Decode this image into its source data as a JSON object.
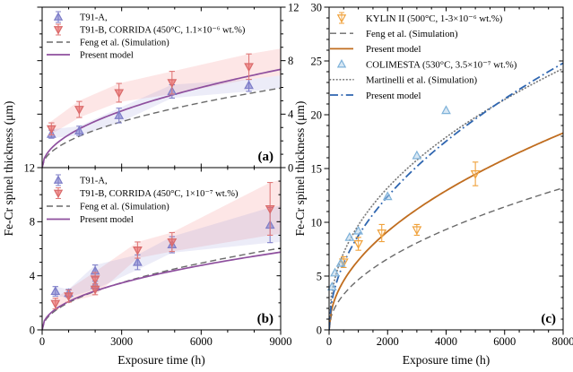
{
  "figure": {
    "background": "#ffffff",
    "shared_ylabel": "Fe-Cr spinel thickness (μm)",
    "panel_c_ylabel": "Fe-Cr spinel thickness (μm)",
    "xlabel_left": "Exposure time (h)",
    "xlabel_right": "Exposure time (h)",
    "panel_label_color": "#1c1ccd",
    "frame_color": "#000000"
  },
  "chart_data": [
    {
      "id": "a",
      "type": "scatter",
      "panel_label": "(a)",
      "xlim": [
        0,
        9000
      ],
      "ylim": [
        0,
        12
      ],
      "xticks": {
        "major": [
          0,
          3000,
          6000,
          9000
        ],
        "minor_step": 1000,
        "show_labels": false
      },
      "yticks": {
        "major": [
          0,
          4,
          8,
          12
        ],
        "minor_step": 1,
        "label_side": "right"
      },
      "bands": [
        {
          "name": "t91b-spread",
          "color": "rgba(244,140,140,0.22)",
          "x": [
            300,
            1400,
            2900,
            4900,
            7800,
            9000
          ],
          "upper": [
            3.4,
            5.0,
            6.3,
            7.2,
            8.5,
            8.9
          ],
          "lower": [
            2.45,
            3.75,
            4.9,
            5.5,
            6.6,
            6.9
          ]
        },
        {
          "name": "t91a-spread",
          "color": "rgba(148,148,216,0.18)",
          "x": [
            300,
            1400,
            2900,
            4900,
            7800,
            9000
          ],
          "upper": [
            2.85,
            3.1,
            4.45,
            6.2,
            6.6,
            6.9
          ],
          "lower": [
            2.2,
            2.4,
            3.35,
            5.2,
            5.7,
            5.95
          ]
        }
      ],
      "series": [
        {
          "name": "T91-A,",
          "kind": "scatter",
          "marker": "triangle-up",
          "fill": "rgba(125,125,204,0.6)",
          "edge": "#7d7dc8",
          "err_color": "#8181c9",
          "x": [
            350,
            1400,
            2900,
            4900,
            7800
          ],
          "y": [
            2.5,
            2.75,
            3.9,
            5.7,
            6.15
          ],
          "yerr": [
            0.3,
            0.35,
            0.55,
            0.5,
            0.45
          ]
        },
        {
          "name": "T91-B, CORRIDA (450°C, 1.1×10⁻⁶ wt.%)",
          "kind": "scatter",
          "marker": "triangle-down",
          "fill": "rgba(232,106,106,0.65)",
          "edge": "#d96a6a",
          "err_color": "#e07a7a",
          "x": [
            350,
            1400,
            2900,
            4900,
            7800
          ],
          "y": [
            2.9,
            4.35,
            5.6,
            6.35,
            7.55
          ],
          "yerr": [
            0.45,
            0.6,
            0.7,
            0.85,
            0.95
          ]
        },
        {
          "name": "Feng et al. (Simulation)",
          "kind": "curve",
          "style": "dashed",
          "color": "#6a6a6a",
          "width": 1.4,
          "power": {
            "coef": 5.95,
            "exp": 0.5,
            "tref": 9000
          }
        },
        {
          "name": "Present model",
          "kind": "curve",
          "style": "solid",
          "color": "#8e4f9e",
          "width": 1.7,
          "power": {
            "coef": 7.35,
            "exp": 0.5,
            "tref": 9000
          }
        }
      ]
    },
    {
      "id": "b",
      "type": "scatter",
      "panel_label": "(b)",
      "xlim": [
        0,
        9000
      ],
      "ylim": [
        0,
        12
      ],
      "xticks": {
        "major": [
          0,
          3000,
          6000,
          9000
        ],
        "minor_step": 1000,
        "show_labels": true
      },
      "yticks": {
        "major": [
          0,
          4,
          8,
          12
        ],
        "minor_step": 1,
        "label_side": "left"
      },
      "bands": [
        {
          "name": "t91b-spread",
          "color": "rgba(244,140,140,0.22)",
          "x": [
            500,
            1000,
            2000,
            3600,
            4900,
            8600,
            9000
          ],
          "upper": [
            2.35,
            3.0,
            4.3,
            6.5,
            7.2,
            10.9,
            11.1
          ],
          "lower": [
            1.55,
            2.05,
            2.55,
            5.3,
            5.8,
            7.0,
            7.1
          ]
        },
        {
          "name": "t91a-spread",
          "color": "rgba(148,148,216,0.18)",
          "x": [
            500,
            1000,
            2000,
            3600,
            4900,
            8600,
            9000
          ],
          "upper": [
            3.2,
            3.0,
            4.8,
            5.55,
            6.9,
            9.05,
            9.2
          ],
          "lower": [
            2.5,
            2.4,
            3.0,
            4.45,
            5.7,
            6.45,
            6.5
          ]
        }
      ],
      "series": [
        {
          "name": "T91-A,",
          "kind": "scatter",
          "marker": "triangle-up",
          "fill": "rgba(125,125,204,0.6)",
          "edge": "#7d7dc8",
          "err_color": "#8181c9",
          "x": [
            500,
            1000,
            2000,
            2000,
            3600,
            4900,
            8600
          ],
          "y": [
            2.85,
            2.7,
            4.35,
            3.3,
            5.0,
            6.3,
            7.75
          ],
          "yerr": [
            0.35,
            0.3,
            0.45,
            0.3,
            0.55,
            0.6,
            1.3
          ]
        },
        {
          "name": "T91-B, CORRIDA (450°C, 1×10⁻⁷ wt.%)",
          "kind": "scatter",
          "marker": "triangle-down",
          "fill": "rgba(232,106,106,0.65)",
          "edge": "#d96a6a",
          "err_color": "#e07a7a",
          "x": [
            500,
            1000,
            2000,
            2000,
            3600,
            4900,
            8600
          ],
          "y": [
            1.95,
            2.5,
            3.75,
            3.0,
            5.9,
            6.5,
            8.95
          ],
          "yerr": [
            0.4,
            0.45,
            0.5,
            0.4,
            0.6,
            0.7,
            1.95
          ]
        },
        {
          "name": "Feng et al. (Simulation)",
          "kind": "curve",
          "style": "dashed",
          "color": "#6a6a6a",
          "width": 1.4,
          "power": {
            "coef": 6.05,
            "exp": 0.5,
            "tref": 9000
          }
        },
        {
          "name": "Present model",
          "kind": "curve",
          "style": "solid",
          "color": "#8e4f9e",
          "width": 1.7,
          "power": {
            "coef": 5.75,
            "exp": 0.46,
            "tref": 9000
          }
        }
      ]
    },
    {
      "id": "c",
      "type": "scatter",
      "panel_label": "(c)",
      "xlim": [
        0,
        8000
      ],
      "ylim": [
        0,
        30
      ],
      "xticks": {
        "major": [
          0,
          2000,
          4000,
          6000,
          8000
        ],
        "minor_step": 500,
        "show_labels": true
      },
      "yticks": {
        "major": [
          0,
          5,
          10,
          15,
          20,
          25,
          30
        ],
        "minor_step": 1,
        "label_side": "left"
      },
      "bands": [],
      "series": [
        {
          "name": "KYLIN II (500°C, 1-3×10⁻⁶ wt.%)",
          "kind": "scatter",
          "marker": "triangle-down",
          "fill": "rgba(255,255,255,0.15)",
          "edge": "#f0a23c",
          "err_color": "#f0a23c",
          "x": [
            500,
            1000,
            1800,
            3000,
            5000
          ],
          "y": [
            6.3,
            8.0,
            9.0,
            9.3,
            14.5
          ],
          "yerr": [
            0.5,
            0.6,
            0.8,
            0.5,
            1.1
          ]
        },
        {
          "name": "Feng et al. (Simulation)",
          "kind": "curve",
          "style": "dashed",
          "color": "#6a6a6a",
          "width": 1.4,
          "power": {
            "coef": 13.2,
            "exp": 0.5,
            "tref": 8000
          }
        },
        {
          "name": "Present model",
          "kind": "curve",
          "style": "solid",
          "color": "#c06d1f",
          "width": 1.8,
          "power": {
            "coef": 18.3,
            "exp": 0.5,
            "tref": 8000
          }
        },
        {
          "name": "COLIMESTA (530°C, 3.5×10⁻⁷ wt.%)",
          "kind": "scatter",
          "marker": "triangle-up",
          "fill": "rgba(166,201,230,0.45)",
          "edge": "#7fb2d9",
          "err_color": "#7fb2d9",
          "x": [
            100,
            200,
            400,
            700,
            1000,
            2000,
            3000,
            4000
          ],
          "y": [
            4.0,
            5.3,
            6.2,
            8.6,
            9.2,
            12.4,
            16.2,
            20.4
          ]
        },
        {
          "name": "Martinelli et al. (Simulation)",
          "kind": "curve",
          "style": "dotted",
          "color": "#7a7a7a",
          "width": 1.7,
          "power": {
            "coef": 24.3,
            "exp": 0.44,
            "tref": 8000
          }
        },
        {
          "name": "Present model",
          "kind": "curve",
          "style": "dashdot",
          "color": "#2f66b0",
          "width": 1.8,
          "power": {
            "coef": 24.8,
            "exp": 0.5,
            "tref": 8000
          }
        }
      ]
    }
  ]
}
